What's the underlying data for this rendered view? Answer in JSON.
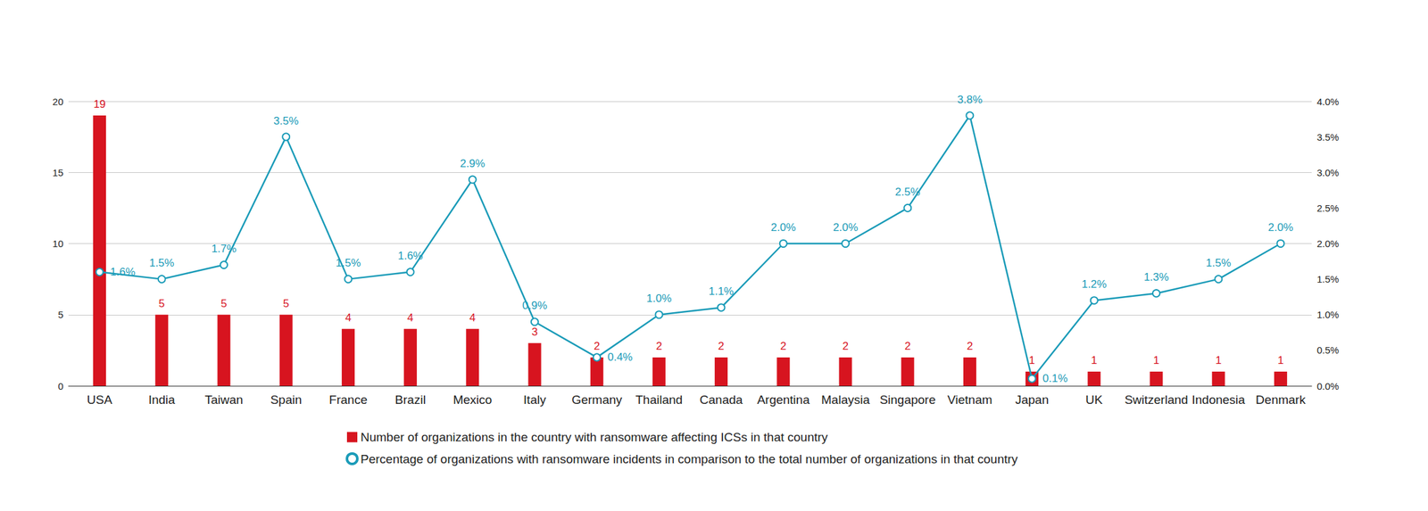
{
  "chart_data": {
    "type": "bar",
    "categories": [
      "USA",
      "India",
      "Taiwan",
      "Spain",
      "France",
      "Brazil",
      "Mexico",
      "Italy",
      "Germany",
      "Thailand",
      "Canada",
      "Argentina",
      "Malaysia",
      "Singapore",
      "Vietnam",
      "Japan",
      "UK",
      "Switzerland",
      "Indonesia",
      "Denmark"
    ],
    "series": [
      {
        "name": "Number of organizations in the country with ransomware affecting ICSs in that country",
        "type": "bar",
        "color": "#d7141f",
        "values": [
          19,
          5,
          5,
          5,
          4,
          4,
          4,
          3,
          2,
          2,
          2,
          2,
          2,
          2,
          2,
          1,
          1,
          1,
          1,
          1
        ]
      },
      {
        "name": "Percentage of organizations with ransomware incidents in comparison to the total number of organizations in that country",
        "type": "line",
        "axis": "y2",
        "color": "#1a9bb8",
        "marker": "circle",
        "values": [
          1.6,
          1.5,
          1.7,
          3.5,
          1.5,
          1.6,
          2.9,
          0.9,
          0.4,
          1.0,
          1.1,
          2.0,
          2.0,
          2.5,
          3.8,
          0.1,
          1.2,
          1.3,
          1.5,
          2.0
        ],
        "value_labels": [
          "1.6%",
          "1.5%",
          "1.7%",
          "3.5%",
          "1.5%",
          "1.6%",
          "2.9%",
          "0.9%",
          "0.4%",
          "1.0%",
          "1.1%",
          "2.0%",
          "2.0%",
          "2.5%",
          "3.8%",
          "0.1%",
          "1.2%",
          "1.3%",
          "1.5%",
          "2.0%"
        ]
      }
    ],
    "ylim": [
      0,
      20
    ],
    "yticks": [
      0,
      5,
      10,
      15,
      20
    ],
    "y2lim": [
      0,
      4.0
    ],
    "y2ticks": [
      {
        "value": 0,
        "label": "0.0%"
      },
      {
        "value": 0.5,
        "label": "0.5%"
      },
      {
        "value": 1.0,
        "label": "1.0%"
      },
      {
        "value": 1.5,
        "label": "1.5%"
      },
      {
        "value": 2.0,
        "label": "2.0%"
      },
      {
        "value": 2.5,
        "label": "2.5%"
      },
      {
        "value": 3.0,
        "label": "3.0%"
      },
      {
        "value": 3.5,
        "label": "3.5%"
      },
      {
        "value": 4.0,
        "label": "4.0%"
      }
    ],
    "grid": true,
    "legend": "bottom",
    "data_labels": true
  }
}
